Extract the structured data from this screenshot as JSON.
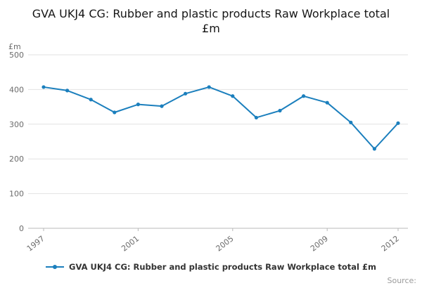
{
  "title": "GVA UKJ4 CG: Rubber and plastic products Raw Workplace total £m",
  "legend": {
    "label": "GVA UKJ4 CG: Rubber and plastic products Raw Workplace total £m"
  },
  "source_label": "Source:",
  "chart_data": {
    "type": "line",
    "title": "GVA UKJ4 CG: Rubber and plastic products Raw Workplace total £m",
    "xlabel": "",
    "ylabel": "£m",
    "x": [
      1997,
      1998,
      1999,
      2000,
      2001,
      2002,
      2003,
      2004,
      2005,
      2006,
      2007,
      2008,
      2009,
      2010,
      2011,
      2012
    ],
    "series": [
      {
        "name": "GVA UKJ4 CG: Rubber and plastic products Raw Workplace total £m",
        "values": [
          407,
          397,
          371,
          334,
          357,
          352,
          388,
          407,
          381,
          319,
          339,
          381,
          362,
          305,
          229,
          303
        ]
      }
    ],
    "ylim": [
      0,
      500
    ],
    "yticks": [
      0,
      100,
      200,
      300,
      400,
      500
    ],
    "xtick_labels": [
      1997,
      2001,
      2005,
      2009,
      2012
    ],
    "grid": true,
    "legend_position": "bottom",
    "line_color": "#1b7fbd",
    "grid_color": "#e2e2e2",
    "axis_color": "#b8b8b8",
    "tick_text_color": "#6b6b6b",
    "marker": "circle"
  }
}
